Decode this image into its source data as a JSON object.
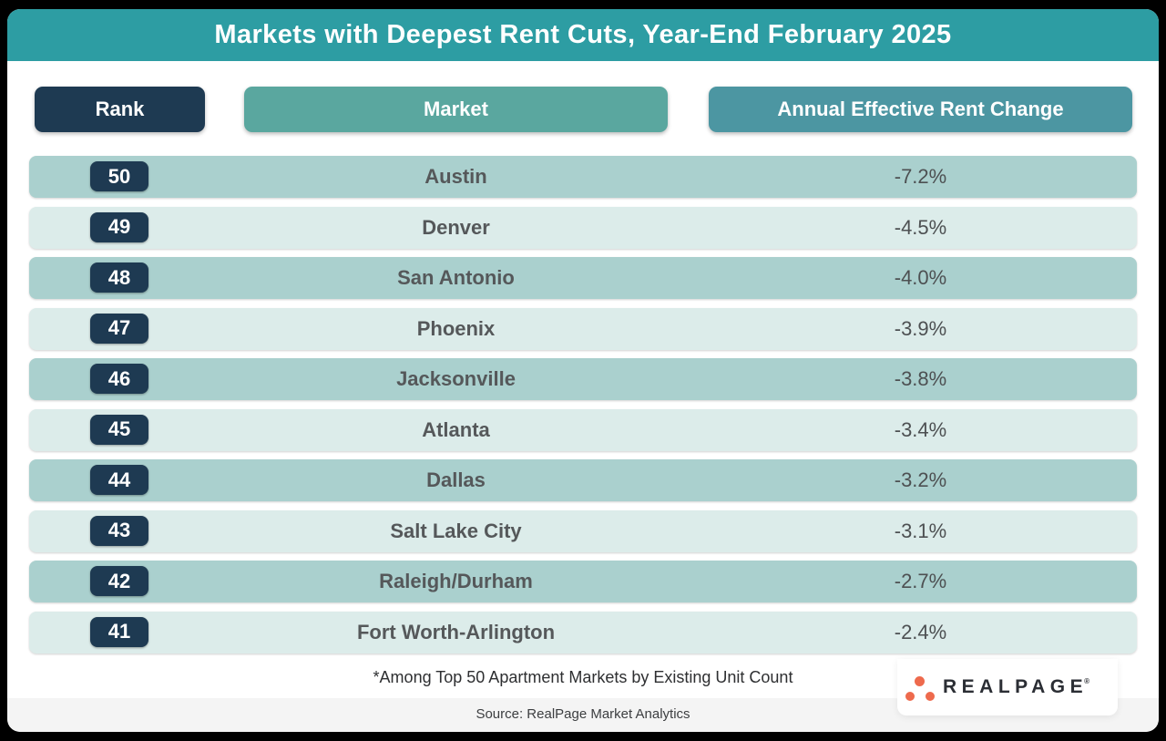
{
  "title": "Markets with Deepest Rent Cuts, Year-End February 2025",
  "columns": {
    "rank": "Rank",
    "market": "Market",
    "change": "Annual Effective Rent Change"
  },
  "chart_data": {
    "type": "table",
    "title": "Markets with Deepest Rent Cuts, Year-End February 2025",
    "columns": [
      "Rank",
      "Market",
      "Annual Effective Rent Change"
    ],
    "rows": [
      {
        "rank": "50",
        "market": "Austin",
        "change": "-7.2%"
      },
      {
        "rank": "49",
        "market": "Denver",
        "change": "-4.5%"
      },
      {
        "rank": "48",
        "market": "San Antonio",
        "change": "-4.0%"
      },
      {
        "rank": "47",
        "market": "Phoenix",
        "change": "-3.9%"
      },
      {
        "rank": "46",
        "market": "Jacksonville",
        "change": "-3.8%"
      },
      {
        "rank": "45",
        "market": "Atlanta",
        "change": "-3.4%"
      },
      {
        "rank": "44",
        "market": "Dallas",
        "change": "-3.2%"
      },
      {
        "rank": "43",
        "market": "Salt Lake City",
        "change": "-3.1%"
      },
      {
        "rank": "42",
        "market": "Raleigh/Durham",
        "change": "-2.7%"
      },
      {
        "rank": "41",
        "market": "Fort Worth-Arlington",
        "change": "-2.4%"
      }
    ]
  },
  "footnote": "*Among Top 50 Apartment Markets by Existing Unit Count",
  "source": "Source: RealPage Market Analytics",
  "logo": {
    "text": "REALPAGE",
    "registered": "®"
  },
  "colors": {
    "titleBar": "#2D9DA3",
    "navy": "#1E3A52",
    "marketHeader": "#5AA79F",
    "changeHeader": "#4C96A2",
    "rowDark": "#AAD0CE",
    "rowLight": "#DCECEA",
    "orange": "#EE6A4D"
  }
}
